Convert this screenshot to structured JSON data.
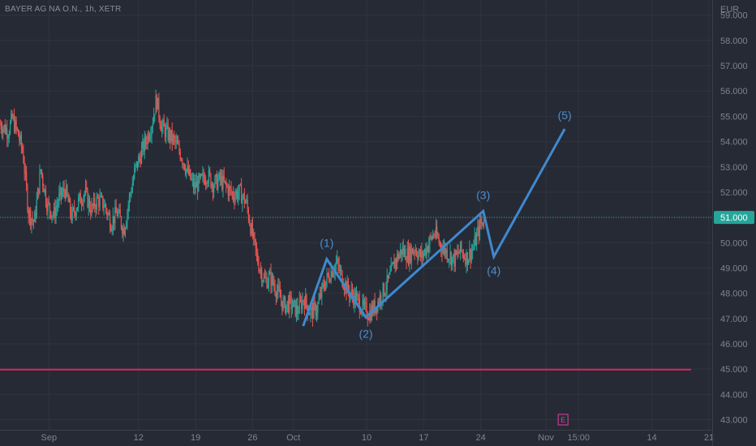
{
  "symbol_title": "BAYER AG NA O.N., 1h, XETR",
  "colors": {
    "background": "#262a35",
    "grid": "#30343f",
    "axis_text": "#7f8390",
    "candle_up": "#26a69a",
    "candle_down": "#ef5350",
    "wave_line": "#3f89cf",
    "support_line": "#e0245e",
    "price_tag": "#26a69a",
    "earnings_marker": "#e040a0"
  },
  "chart_data": {
    "type": "candlestick",
    "instrument": "BAYER AG NA O.N.",
    "timeframe": "1h",
    "exchange": "XETR",
    "currency": "EUR",
    "ylim": [
      42.6,
      59.6
    ],
    "y_ticks": [
      "43.000",
      "44.000",
      "45.000",
      "46.000",
      "47.000",
      "48.000",
      "49.000",
      "50.000",
      "51.000",
      "52.000",
      "53.000",
      "54.000",
      "55.000",
      "56.000",
      "57.000",
      "58.000",
      "59.000"
    ],
    "x_ticks": [
      "Sep",
      "12",
      "19",
      "26",
      "Oct",
      "10",
      "17",
      "24",
      "Nov",
      "15:00",
      "14",
      "21"
    ],
    "x_tick_days": [
      1,
      12,
      19,
      26,
      31,
      40,
      47,
      54,
      62,
      66,
      75,
      82
    ],
    "x_range_days": [
      -5,
      82.4
    ],
    "current_price": "51.000",
    "current_price_value": 51.0,
    "support_level": 44.98,
    "price_path": [
      [
        -5,
        54.7
      ],
      [
        -4,
        54.4
      ],
      [
        -3.5,
        54.9
      ],
      [
        -2.8,
        54.3
      ],
      [
        -2.2,
        53.6
      ],
      [
        -1.5,
        51.2
      ],
      [
        -0.8,
        50.8
      ],
      [
        0,
        52.9
      ],
      [
        0.8,
        51.5
      ],
      [
        1.6,
        51.1
      ],
      [
        2.3,
        51.8
      ],
      [
        3,
        52.1
      ],
      [
        3.8,
        51.0
      ],
      [
        4.6,
        51.6
      ],
      [
        5.4,
        52.0
      ],
      [
        6.2,
        51.3
      ],
      [
        7,
        51.7
      ],
      [
        7.8,
        51.5
      ],
      [
        8.6,
        50.8
      ],
      [
        9.4,
        51.2
      ],
      [
        10.2,
        50.5
      ],
      [
        10.9,
        51.8
      ],
      [
        11.6,
        52.9
      ],
      [
        12.4,
        53.6
      ],
      [
        13.2,
        54.3
      ],
      [
        13.7,
        54.8
      ],
      [
        14.2,
        55.7
      ],
      [
        14.8,
        54.6
      ],
      [
        15.6,
        54.3
      ],
      [
        16.4,
        54.0
      ],
      [
        17.2,
        53.5
      ],
      [
        18,
        52.8
      ],
      [
        18.8,
        52.2
      ],
      [
        19.6,
        52.4
      ],
      [
        20.4,
        52.7
      ],
      [
        21.2,
        52.3
      ],
      [
        22,
        52.5
      ],
      [
        22.8,
        52.2
      ],
      [
        23.6,
        51.9
      ],
      [
        24.4,
        52.0
      ],
      [
        25.2,
        51.6
      ],
      [
        25.9,
        50.4
      ],
      [
        26.6,
        49.3
      ],
      [
        27.4,
        48.5
      ],
      [
        28.2,
        48.6
      ],
      [
        29,
        48.1
      ],
      [
        29.8,
        47.5
      ],
      [
        30.6,
        47.6
      ],
      [
        31.5,
        47.3
      ],
      [
        32.3,
        47.8
      ],
      [
        33.1,
        47.2
      ],
      [
        33.9,
        47.4
      ],
      [
        34.7,
        48.3
      ],
      [
        35.5,
        48.8
      ],
      [
        36.3,
        49.2
      ],
      [
        37.1,
        48.5
      ],
      [
        37.9,
        48.0
      ],
      [
        38.7,
        47.8
      ],
      [
        39.5,
        47.4
      ],
      [
        40.3,
        47.2
      ],
      [
        41.1,
        47.5
      ],
      [
        41.9,
        48.0
      ],
      [
        42.7,
        48.5
      ],
      [
        43.5,
        49.3
      ],
      [
        44.3,
        49.7
      ],
      [
        45.1,
        49.5
      ],
      [
        45.9,
        49.8
      ],
      [
        46.7,
        49.4
      ],
      [
        47.5,
        49.9
      ],
      [
        48.3,
        50.4
      ],
      [
        49.1,
        49.9
      ],
      [
        49.9,
        49.6
      ],
      [
        50.7,
        49.3
      ],
      [
        51.5,
        49.7
      ],
      [
        52.3,
        49.4
      ],
      [
        53.1,
        49.8
      ],
      [
        53.9,
        50.7
      ],
      [
        54.4,
        50.9
      ]
    ],
    "elliott_waves": [
      {
        "label": "(1)",
        "x": 35.1,
        "y": 49.35
      },
      {
        "label": "(2)",
        "x": 39.9,
        "y": 47.05
      },
      {
        "label": "(3)",
        "x": 54.3,
        "y": 51.25
      },
      {
        "label": "(4)",
        "x": 55.6,
        "y": 49.45
      },
      {
        "label": "(5)",
        "x": 64.3,
        "y": 54.5
      }
    ],
    "wave_start": {
      "x": 32.2,
      "y": 46.7
    },
    "earnings_marker": {
      "label": "E",
      "day": 64.1
    }
  }
}
